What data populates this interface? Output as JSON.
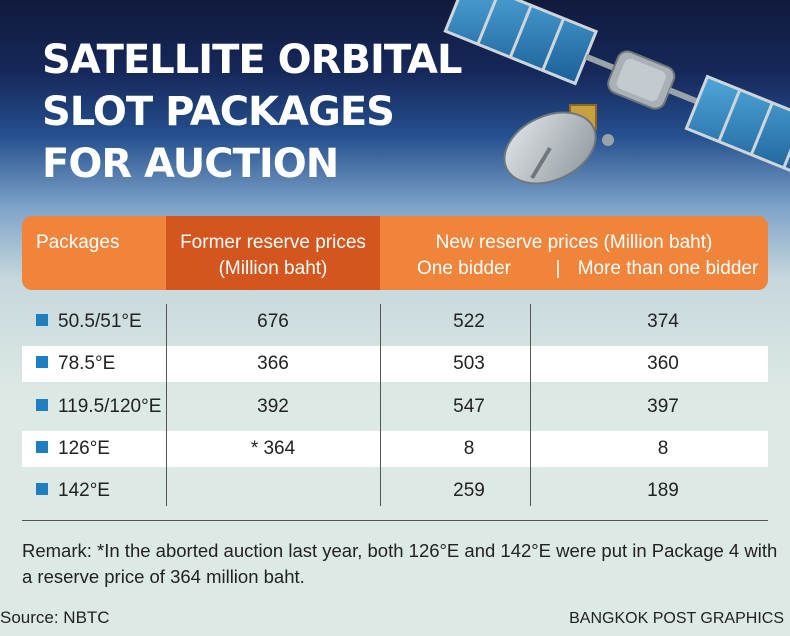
{
  "title_lines": [
    "SATELLITE ORBITAL",
    "SLOT PACKAGES",
    "FOR AUCTION"
  ],
  "colors": {
    "header_orange": "#f0843a",
    "header_dark_orange": "#d4561e",
    "marker_blue": "#1f7ec0",
    "sky_top": "#101a3c",
    "background_mint": "#dde9e4"
  },
  "icons": [
    "satellite-icon"
  ],
  "chart_data": {
    "type": "table",
    "columns": {
      "packages": "Packages",
      "former_line1": "Former reserve prices",
      "former_line2": "(Million baht)",
      "new_group": "New reserve prices (Million baht)",
      "one_bidder": "One bidder",
      "separator": "|",
      "more_bidders": "More than one bidder"
    },
    "rows": [
      {
        "package": "50.5/51°E",
        "former": "676",
        "one_bidder": "522",
        "more": "374"
      },
      {
        "package": "78.5°E",
        "former": "366",
        "one_bidder": "503",
        "more": "360"
      },
      {
        "package": "119.5/120°E",
        "former": "392",
        "one_bidder": "547",
        "more": "397"
      },
      {
        "package": "126°E",
        "former": "* 364",
        "one_bidder": "8",
        "more": "8"
      },
      {
        "package": "142°E",
        "former": "",
        "one_bidder": "259",
        "more": "189"
      }
    ]
  },
  "remark": "Remark: *In the aborted auction last year, both 126°E and 142°E were put in Package 4 with a reserve price of 364 million baht.",
  "source": "Source: NBTC",
  "credit": "BANGKOK POST GRAPHICS"
}
